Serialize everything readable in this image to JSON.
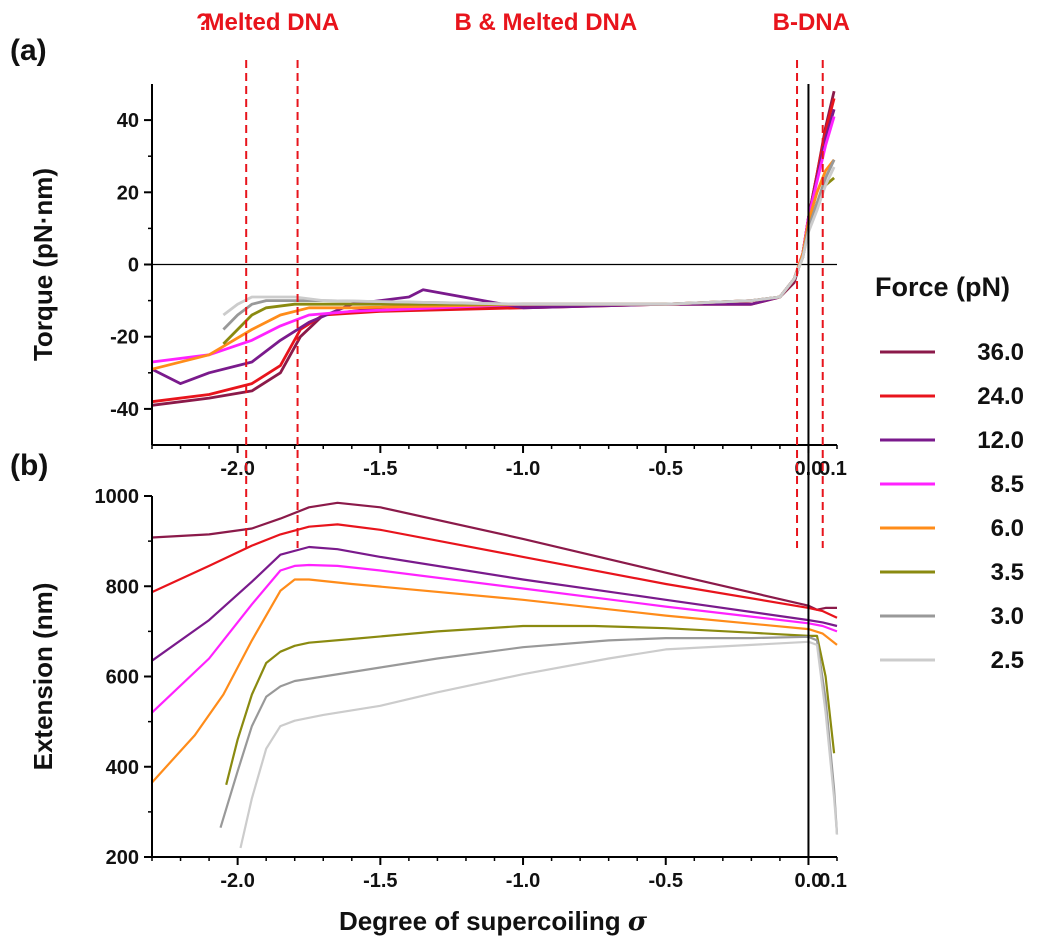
{
  "figure": {
    "x_axis_label": "Degree of supercoiling ",
    "x_axis_symbol": "σ",
    "legend_title": "Force (pN)"
  },
  "regions": [
    {
      "label": "?",
      "center": -2.12
    },
    {
      "label": "Melted DNA",
      "center": -1.88
    },
    {
      "label": "B & Melted DNA",
      "center": -0.92
    },
    {
      "label": "B-DNA",
      "center": 0.01
    }
  ],
  "region_boundaries": [
    -1.97,
    -1.79,
    -0.04,
    0.05
  ],
  "legend": [
    {
      "label": "36.0",
      "color": "#8b1a4a"
    },
    {
      "label": "24.0",
      "color": "#e8141c"
    },
    {
      "label": "12.0",
      "color": "#7a1a8c"
    },
    {
      "label": "8.5",
      "color": "#ff22ff"
    },
    {
      "label": "6.0",
      "color": "#ff8c1a"
    },
    {
      "label": "3.5",
      "color": "#8a8a10"
    },
    {
      "label": "3.0",
      "color": "#999999"
    },
    {
      "label": "2.5",
      "color": "#cccccc"
    }
  ],
  "chart_data": [
    {
      "type": "line",
      "panel_label": "(a)",
      "ylabel": "Torque (pN·nm)",
      "xlim": [
        -2.3,
        0.1
      ],
      "ylim": [
        -50,
        50
      ],
      "xticks": [
        -2.0,
        -1.5,
        -1.0,
        -0.5,
        0.0
      ],
      "xtick_labels": [
        "-2.0",
        "-1.5",
        "-1.0",
        "-0.5",
        "0.0"
      ],
      "yticks": [
        -40,
        -20,
        0,
        20,
        40
      ],
      "ytick_labels": [
        "-40",
        "-20",
        "0",
        "20",
        "40"
      ],
      "series": [
        {
          "color": "#8b1a4a",
          "x": [
            -2.3,
            -2.1,
            -1.95,
            -1.85,
            -1.78,
            -1.7,
            -1.5,
            -1.0,
            -0.5,
            -0.2,
            -0.1,
            -0.05,
            -0.02,
            0.0,
            0.03,
            0.06,
            0.09
          ],
          "y": [
            -39,
            -37,
            -35,
            -30,
            -20,
            -14,
            -12,
            -11.5,
            -11,
            -11,
            -9,
            -5,
            3,
            13,
            25,
            38,
            48
          ]
        },
        {
          "color": "#e8141c",
          "x": [
            -2.3,
            -2.1,
            -1.95,
            -1.85,
            -1.78,
            -1.7,
            -1.5,
            -1.0,
            -0.5,
            -0.2,
            -0.1,
            -0.05,
            -0.02,
            0.0,
            0.03,
            0.06,
            0.09
          ],
          "y": [
            -38,
            -36,
            -33,
            -28,
            -18,
            -14,
            -13,
            -12,
            -11,
            -11,
            -9,
            -4,
            3,
            13,
            25,
            37,
            46
          ]
        },
        {
          "color": "#7a1a8c",
          "x": [
            -2.3,
            -2.2,
            -2.1,
            -1.95,
            -1.85,
            -1.75,
            -1.6,
            -1.4,
            -1.35,
            -1.0,
            -0.5,
            -0.2,
            -0.1,
            -0.05,
            -0.02,
            0.0,
            0.03,
            0.06,
            0.09
          ],
          "y": [
            -29,
            -33,
            -30,
            -27,
            -21,
            -16,
            -11,
            -9,
            -7,
            -12,
            -11,
            -11,
            -9,
            -4,
            3,
            13,
            24,
            35,
            43
          ]
        },
        {
          "color": "#ff22ff",
          "x": [
            -2.3,
            -2.1,
            -1.95,
            -1.85,
            -1.75,
            -1.6,
            -1.0,
            -0.5,
            -0.2,
            -0.1,
            -0.05,
            -0.02,
            0.0,
            0.03,
            0.06,
            0.09
          ],
          "y": [
            -27,
            -25,
            -21,
            -17,
            -14,
            -13,
            -11,
            -11,
            -10,
            -9,
            -4,
            3,
            13,
            23,
            33,
            41
          ]
        },
        {
          "color": "#ff8c1a",
          "x": [
            -2.3,
            -2.1,
            -1.95,
            -1.85,
            -1.75,
            -1.6,
            -1.0,
            -0.5,
            -0.2,
            -0.1,
            -0.05,
            -0.02,
            0.0,
            0.03,
            0.06,
            0.09
          ],
          "y": [
            -29,
            -25,
            -18,
            -14,
            -12,
            -12,
            -11,
            -11,
            -10,
            -9,
            -4,
            3,
            12,
            20,
            26,
            29
          ]
        },
        {
          "color": "#8a8a10",
          "x": [
            -2.05,
            -2.0,
            -1.95,
            -1.9,
            -1.8,
            -1.7,
            -1.0,
            -0.5,
            -0.2,
            -0.1,
            -0.05,
            -0.02,
            0.0,
            0.03,
            0.06,
            0.09
          ],
          "y": [
            -22,
            -18,
            -14,
            -12,
            -11,
            -11,
            -11,
            -11,
            -10,
            -9,
            -4,
            2,
            10,
            17,
            22,
            24
          ]
        },
        {
          "color": "#999999",
          "x": [
            -2.05,
            -2.0,
            -1.95,
            -1.9,
            -1.8,
            -1.7,
            -1.0,
            -0.5,
            -0.2,
            -0.1,
            -0.05,
            -0.02,
            0.0,
            0.03,
            0.06,
            0.09
          ],
          "y": [
            -18,
            -14,
            -11,
            -10,
            -10,
            -10,
            -11,
            -11,
            -10,
            -9,
            -4,
            2,
            10,
            17,
            24,
            29
          ]
        },
        {
          "color": "#cccccc",
          "x": [
            -2.05,
            -2.0,
            -1.95,
            -1.9,
            -1.8,
            -1.7,
            -1.0,
            -0.5,
            -0.2,
            -0.1,
            -0.05,
            -0.02,
            0.0,
            0.03,
            0.06,
            0.09
          ],
          "y": [
            -14,
            -11,
            -9,
            -9,
            -9,
            -10,
            -11,
            -11,
            -10,
            -9,
            -4,
            2,
            9,
            15,
            22,
            27
          ]
        }
      ]
    },
    {
      "type": "line",
      "panel_label": "(b)",
      "ylabel": "Extension (nm)",
      "xlim": [
        -2.3,
        0.1
      ],
      "ylim": [
        200,
        1000
      ],
      "xticks": [
        -2.0,
        -1.5,
        -1.0,
        -0.5,
        0.0
      ],
      "xtick_labels": [
        "-2.0",
        "-1.5",
        "-1.0",
        "-0.5",
        "0.0"
      ],
      "yticks": [
        200,
        400,
        600,
        800,
        1000
      ],
      "ytick_labels": [
        "200",
        "400",
        "600",
        "800",
        "1000"
      ],
      "series": [
        {
          "color": "#8b1a4a",
          "x": [
            -2.3,
            -2.1,
            -1.95,
            -1.85,
            -1.75,
            -1.65,
            -1.5,
            -1.0,
            -0.5,
            0.0,
            0.03,
            0.06,
            0.1
          ],
          "y": [
            908,
            915,
            928,
            950,
            975,
            985,
            975,
            905,
            830,
            757,
            748,
            752,
            752
          ]
        },
        {
          "color": "#e8141c",
          "x": [
            -2.3,
            -2.1,
            -1.95,
            -1.85,
            -1.75,
            -1.65,
            -1.5,
            -1.0,
            -0.5,
            0.0,
            0.05,
            0.1
          ],
          "y": [
            787,
            845,
            890,
            915,
            932,
            937,
            925,
            865,
            805,
            752,
            745,
            730
          ]
        },
        {
          "color": "#7a1a8c",
          "x": [
            -2.3,
            -2.1,
            -1.95,
            -1.85,
            -1.75,
            -1.65,
            -1.5,
            -1.0,
            -0.5,
            0.0,
            0.05,
            0.1
          ],
          "y": [
            635,
            725,
            810,
            870,
            887,
            882,
            865,
            815,
            770,
            725,
            720,
            712
          ]
        },
        {
          "color": "#ff22ff",
          "x": [
            -2.3,
            -2.1,
            -1.95,
            -1.85,
            -1.8,
            -1.75,
            -1.65,
            -1.5,
            -1.0,
            -0.5,
            0.0,
            0.05,
            0.1
          ],
          "y": [
            520,
            640,
            760,
            835,
            845,
            847,
            845,
            835,
            795,
            755,
            718,
            712,
            700
          ]
        },
        {
          "color": "#ff8c1a",
          "x": [
            -2.3,
            -2.15,
            -2.05,
            -1.95,
            -1.85,
            -1.8,
            -1.75,
            -1.6,
            -1.0,
            -0.5,
            0.0,
            0.05,
            0.1
          ],
          "y": [
            365,
            470,
            560,
            680,
            790,
            815,
            815,
            805,
            770,
            735,
            705,
            695,
            670
          ]
        },
        {
          "color": "#8a8a10",
          "x": [
            -2.04,
            -2.0,
            -1.95,
            -1.9,
            -1.85,
            -1.8,
            -1.75,
            -1.6,
            -1.3,
            -1.0,
            -0.75,
            -0.5,
            -0.2,
            0.0,
            0.03,
            0.06,
            0.09
          ],
          "y": [
            360,
            460,
            560,
            630,
            655,
            668,
            675,
            683,
            700,
            712,
            712,
            707,
            697,
            690,
            690,
            600,
            430
          ]
        },
        {
          "color": "#999999",
          "x": [
            -2.06,
            -2.0,
            -1.95,
            -1.9,
            -1.85,
            -1.8,
            -1.7,
            -1.5,
            -1.3,
            -1.0,
            -0.7,
            -0.5,
            -0.2,
            0.0,
            0.03,
            0.06,
            0.09,
            0.1
          ],
          "y": [
            265,
            390,
            490,
            555,
            578,
            590,
            600,
            620,
            640,
            665,
            680,
            685,
            685,
            688,
            680,
            550,
            350,
            250
          ]
        },
        {
          "color": "#cccccc",
          "x": [
            -1.99,
            -1.95,
            -1.9,
            -1.85,
            -1.8,
            -1.7,
            -1.5,
            -1.3,
            -1.0,
            -0.7,
            -0.5,
            -0.2,
            0.0,
            0.03,
            0.06,
            0.09,
            0.1
          ],
          "y": [
            220,
            330,
            440,
            490,
            502,
            515,
            535,
            565,
            605,
            640,
            660,
            670,
            677,
            670,
            520,
            330,
            250
          ]
        }
      ]
    }
  ]
}
